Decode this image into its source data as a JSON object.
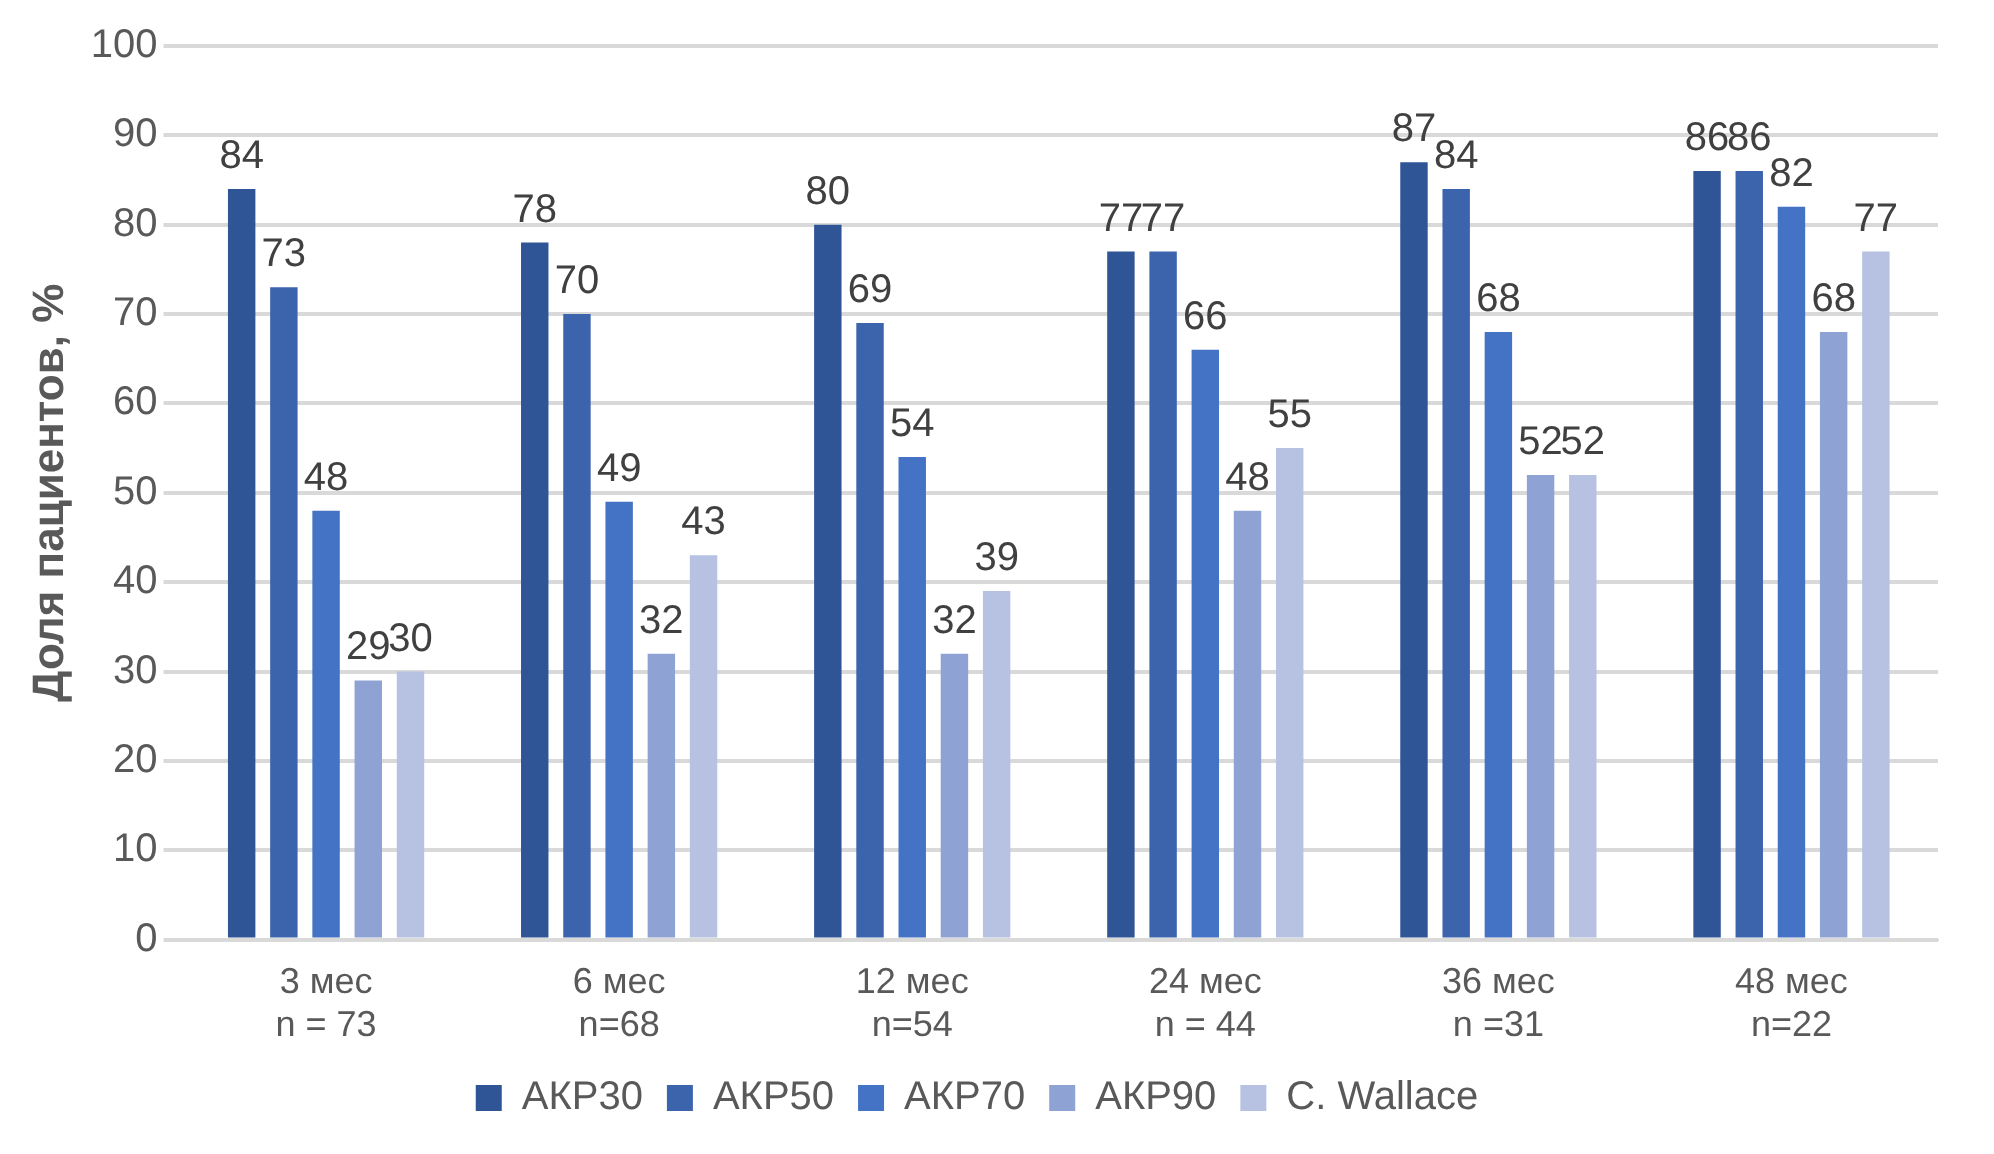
{
  "chart_data": {
    "type": "bar",
    "ylabel": "Доля пациентов, %",
    "categories": [
      "3 мес\nn = 73",
      "6 мес\nn=68",
      "12 мес\nn=54",
      "24 мес\nn = 44",
      "36 мес\nn =31",
      "48 мес\nn=22"
    ],
    "series": [
      {
        "name": "АКР30",
        "color": "#2f5597",
        "values": [
          84,
          78,
          80,
          77,
          87,
          86
        ]
      },
      {
        "name": "АКР50",
        "color": "#3b64ad",
        "values": [
          73,
          70,
          69,
          77,
          84,
          86
        ]
      },
      {
        "name": "АКР70",
        "color": "#4472c4",
        "values": [
          48,
          49,
          54,
          66,
          68,
          82
        ]
      },
      {
        "name": "АКР90",
        "color": "#8fa2d4",
        "values": [
          29,
          32,
          32,
          48,
          52,
          68
        ]
      },
      {
        "name": "C. Wallace",
        "color": "#b7c2e3",
        "values": [
          30,
          43,
          39,
          55,
          52,
          77
        ]
      }
    ],
    "ylim": [
      0,
      100
    ],
    "yticks": [
      0,
      10,
      20,
      30,
      40,
      50,
      60,
      70,
      80,
      90,
      100
    ],
    "grid": "y",
    "legend": "bottom",
    "data_labels": true
  }
}
